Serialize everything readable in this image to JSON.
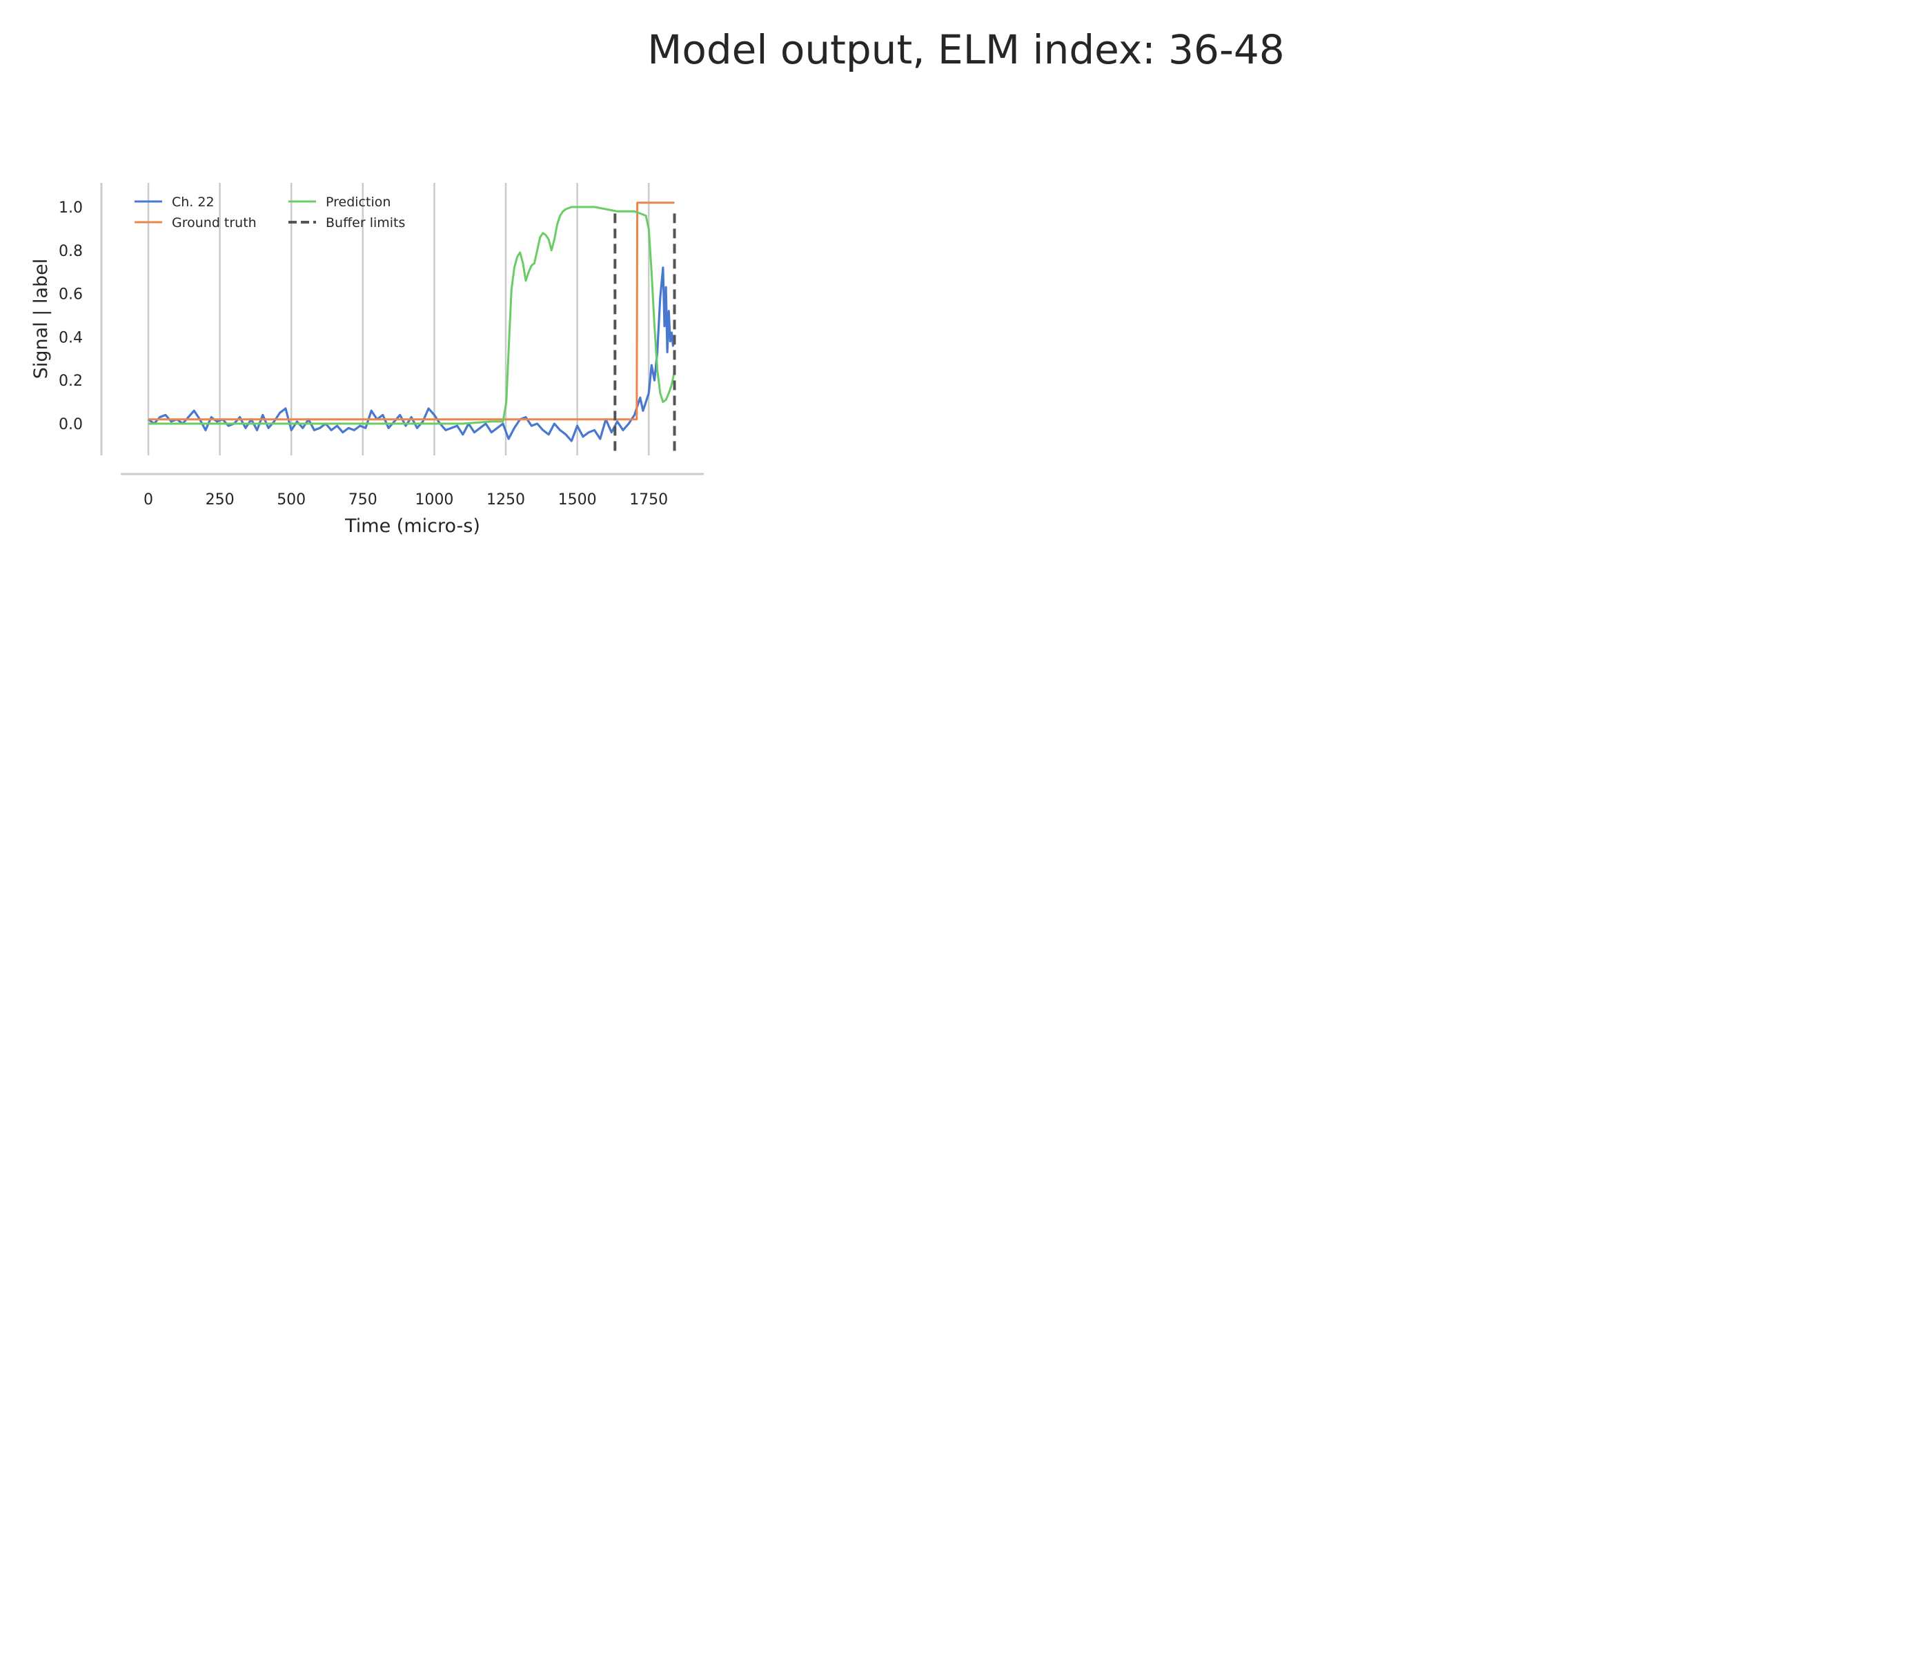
{
  "figure": {
    "title": "Model output, ELM index: 36-48"
  },
  "chart_data": {
    "type": "line",
    "title": "",
    "xlabel": "Time (micro-s)",
    "ylabel": "Signal | label",
    "xlim": [
      -95,
      1950
    ],
    "ylim": [
      -0.15,
      1.1
    ],
    "xticks": [
      0,
      250,
      500,
      750,
      1000,
      1250,
      1500,
      1750
    ],
    "xtick_labels": [
      "0",
      "250",
      "500",
      "750",
      "1000",
      "1250",
      "1500",
      "1750"
    ],
    "yticks": [
      0.0,
      0.2,
      0.4,
      0.6,
      0.8,
      1.0
    ],
    "ytick_labels": [
      "0.0",
      "0.2",
      "0.4",
      "0.6",
      "0.8",
      "1.0"
    ],
    "grid": "vertical",
    "legend_position": "top-left",
    "colors": {
      "signal": "#4878d0",
      "ground_truth": "#ee854a",
      "prediction": "#6acc64",
      "buffer": "#555555"
    },
    "series": [
      {
        "name": "Ch. 22",
        "key": "signal",
        "x": [
          0,
          20,
          40,
          60,
          80,
          100,
          120,
          140,
          160,
          180,
          200,
          220,
          240,
          260,
          280,
          300,
          320,
          340,
          360,
          380,
          400,
          420,
          440,
          460,
          480,
          500,
          520,
          540,
          560,
          580,
          600,
          620,
          640,
          660,
          680,
          700,
          720,
          740,
          760,
          780,
          800,
          820,
          840,
          860,
          880,
          900,
          920,
          940,
          960,
          980,
          1000,
          1020,
          1040,
          1060,
          1080,
          1100,
          1120,
          1140,
          1160,
          1180,
          1200,
          1220,
          1240,
          1260,
          1280,
          1300,
          1320,
          1340,
          1360,
          1380,
          1400,
          1420,
          1440,
          1460,
          1480,
          1500,
          1520,
          1540,
          1560,
          1580,
          1600,
          1620,
          1640,
          1660,
          1680,
          1700,
          1710,
          1720,
          1730,
          1740,
          1750,
          1760,
          1770,
          1780,
          1790,
          1800,
          1805,
          1810,
          1815,
          1820,
          1825,
          1830,
          1835,
          1840
        ],
        "values": [
          0.02,
          0.0,
          0.03,
          0.04,
          0.01,
          0.02,
          0.0,
          0.03,
          0.06,
          0.02,
          -0.03,
          0.03,
          0.01,
          0.02,
          -0.01,
          0.0,
          0.03,
          -0.02,
          0.02,
          -0.03,
          0.04,
          -0.02,
          0.01,
          0.05,
          0.07,
          -0.03,
          0.01,
          -0.02,
          0.02,
          -0.03,
          -0.02,
          0.0,
          -0.03,
          -0.01,
          -0.04,
          -0.02,
          -0.03,
          -0.01,
          -0.02,
          0.06,
          0.02,
          0.04,
          -0.02,
          0.01,
          0.04,
          -0.01,
          0.03,
          -0.02,
          0.01,
          0.07,
          0.04,
          0.0,
          -0.03,
          -0.02,
          -0.01,
          -0.05,
          0.0,
          -0.04,
          -0.02,
          0.0,
          -0.04,
          -0.02,
          0.0,
          -0.07,
          -0.02,
          0.02,
          0.03,
          -0.01,
          0.0,
          -0.03,
          -0.05,
          0.0,
          -0.03,
          -0.05,
          -0.08,
          -0.01,
          -0.06,
          -0.04,
          -0.03,
          -0.07,
          0.02,
          -0.04,
          0.01,
          -0.03,
          0.0,
          0.04,
          0.08,
          0.12,
          0.06,
          0.1,
          0.14,
          0.27,
          0.2,
          0.33,
          0.58,
          0.72,
          0.45,
          0.63,
          0.33,
          0.52,
          0.38,
          0.42,
          0.36,
          0.4
        ]
      },
      {
        "name": "Ground truth",
        "key": "ground_truth",
        "x": [
          0,
          1708,
          1710,
          1840
        ],
        "values": [
          0.02,
          0.02,
          1.02,
          1.02
        ]
      },
      {
        "name": "Prediction",
        "key": "prediction",
        "x": [
          0,
          100,
          200,
          300,
          400,
          500,
          600,
          700,
          800,
          900,
          1000,
          1100,
          1200,
          1240,
          1252,
          1262,
          1270,
          1280,
          1290,
          1300,
          1310,
          1320,
          1330,
          1340,
          1350,
          1360,
          1370,
          1380,
          1390,
          1400,
          1410,
          1420,
          1430,
          1440,
          1450,
          1460,
          1480,
          1500,
          1520,
          1560,
          1600,
          1640,
          1680,
          1700,
          1720,
          1740,
          1750,
          1760,
          1770,
          1780,
          1790,
          1800,
          1810,
          1820,
          1830,
          1840
        ],
        "values": [
          0.0,
          0.0,
          0.0,
          0.0,
          0.0,
          0.0,
          0.0,
          0.0,
          0.0,
          0.0,
          0.0,
          0.0,
          0.01,
          0.01,
          0.1,
          0.4,
          0.62,
          0.72,
          0.77,
          0.79,
          0.74,
          0.66,
          0.7,
          0.73,
          0.74,
          0.8,
          0.86,
          0.88,
          0.87,
          0.85,
          0.8,
          0.85,
          0.92,
          0.96,
          0.98,
          0.99,
          1.0,
          1.0,
          1.0,
          1.0,
          0.99,
          0.98,
          0.98,
          0.98,
          0.97,
          0.96,
          0.9,
          0.7,
          0.45,
          0.25,
          0.14,
          0.1,
          0.11,
          0.14,
          0.18,
          0.24
        ]
      }
    ],
    "buffer_limits": {
      "name": "Buffer limits",
      "key": "buffer",
      "x": [
        1632,
        1840
      ],
      "y_range": [
        -0.14,
        0.97
      ]
    },
    "legend": [
      {
        "label": "Ch. 22",
        "key": "signal",
        "style": "solid"
      },
      {
        "label": "Ground truth",
        "key": "ground_truth",
        "style": "solid"
      },
      {
        "label": "Prediction",
        "key": "prediction",
        "style": "solid"
      },
      {
        "label": "Buffer limits",
        "key": "buffer",
        "style": "dashed"
      }
    ]
  }
}
